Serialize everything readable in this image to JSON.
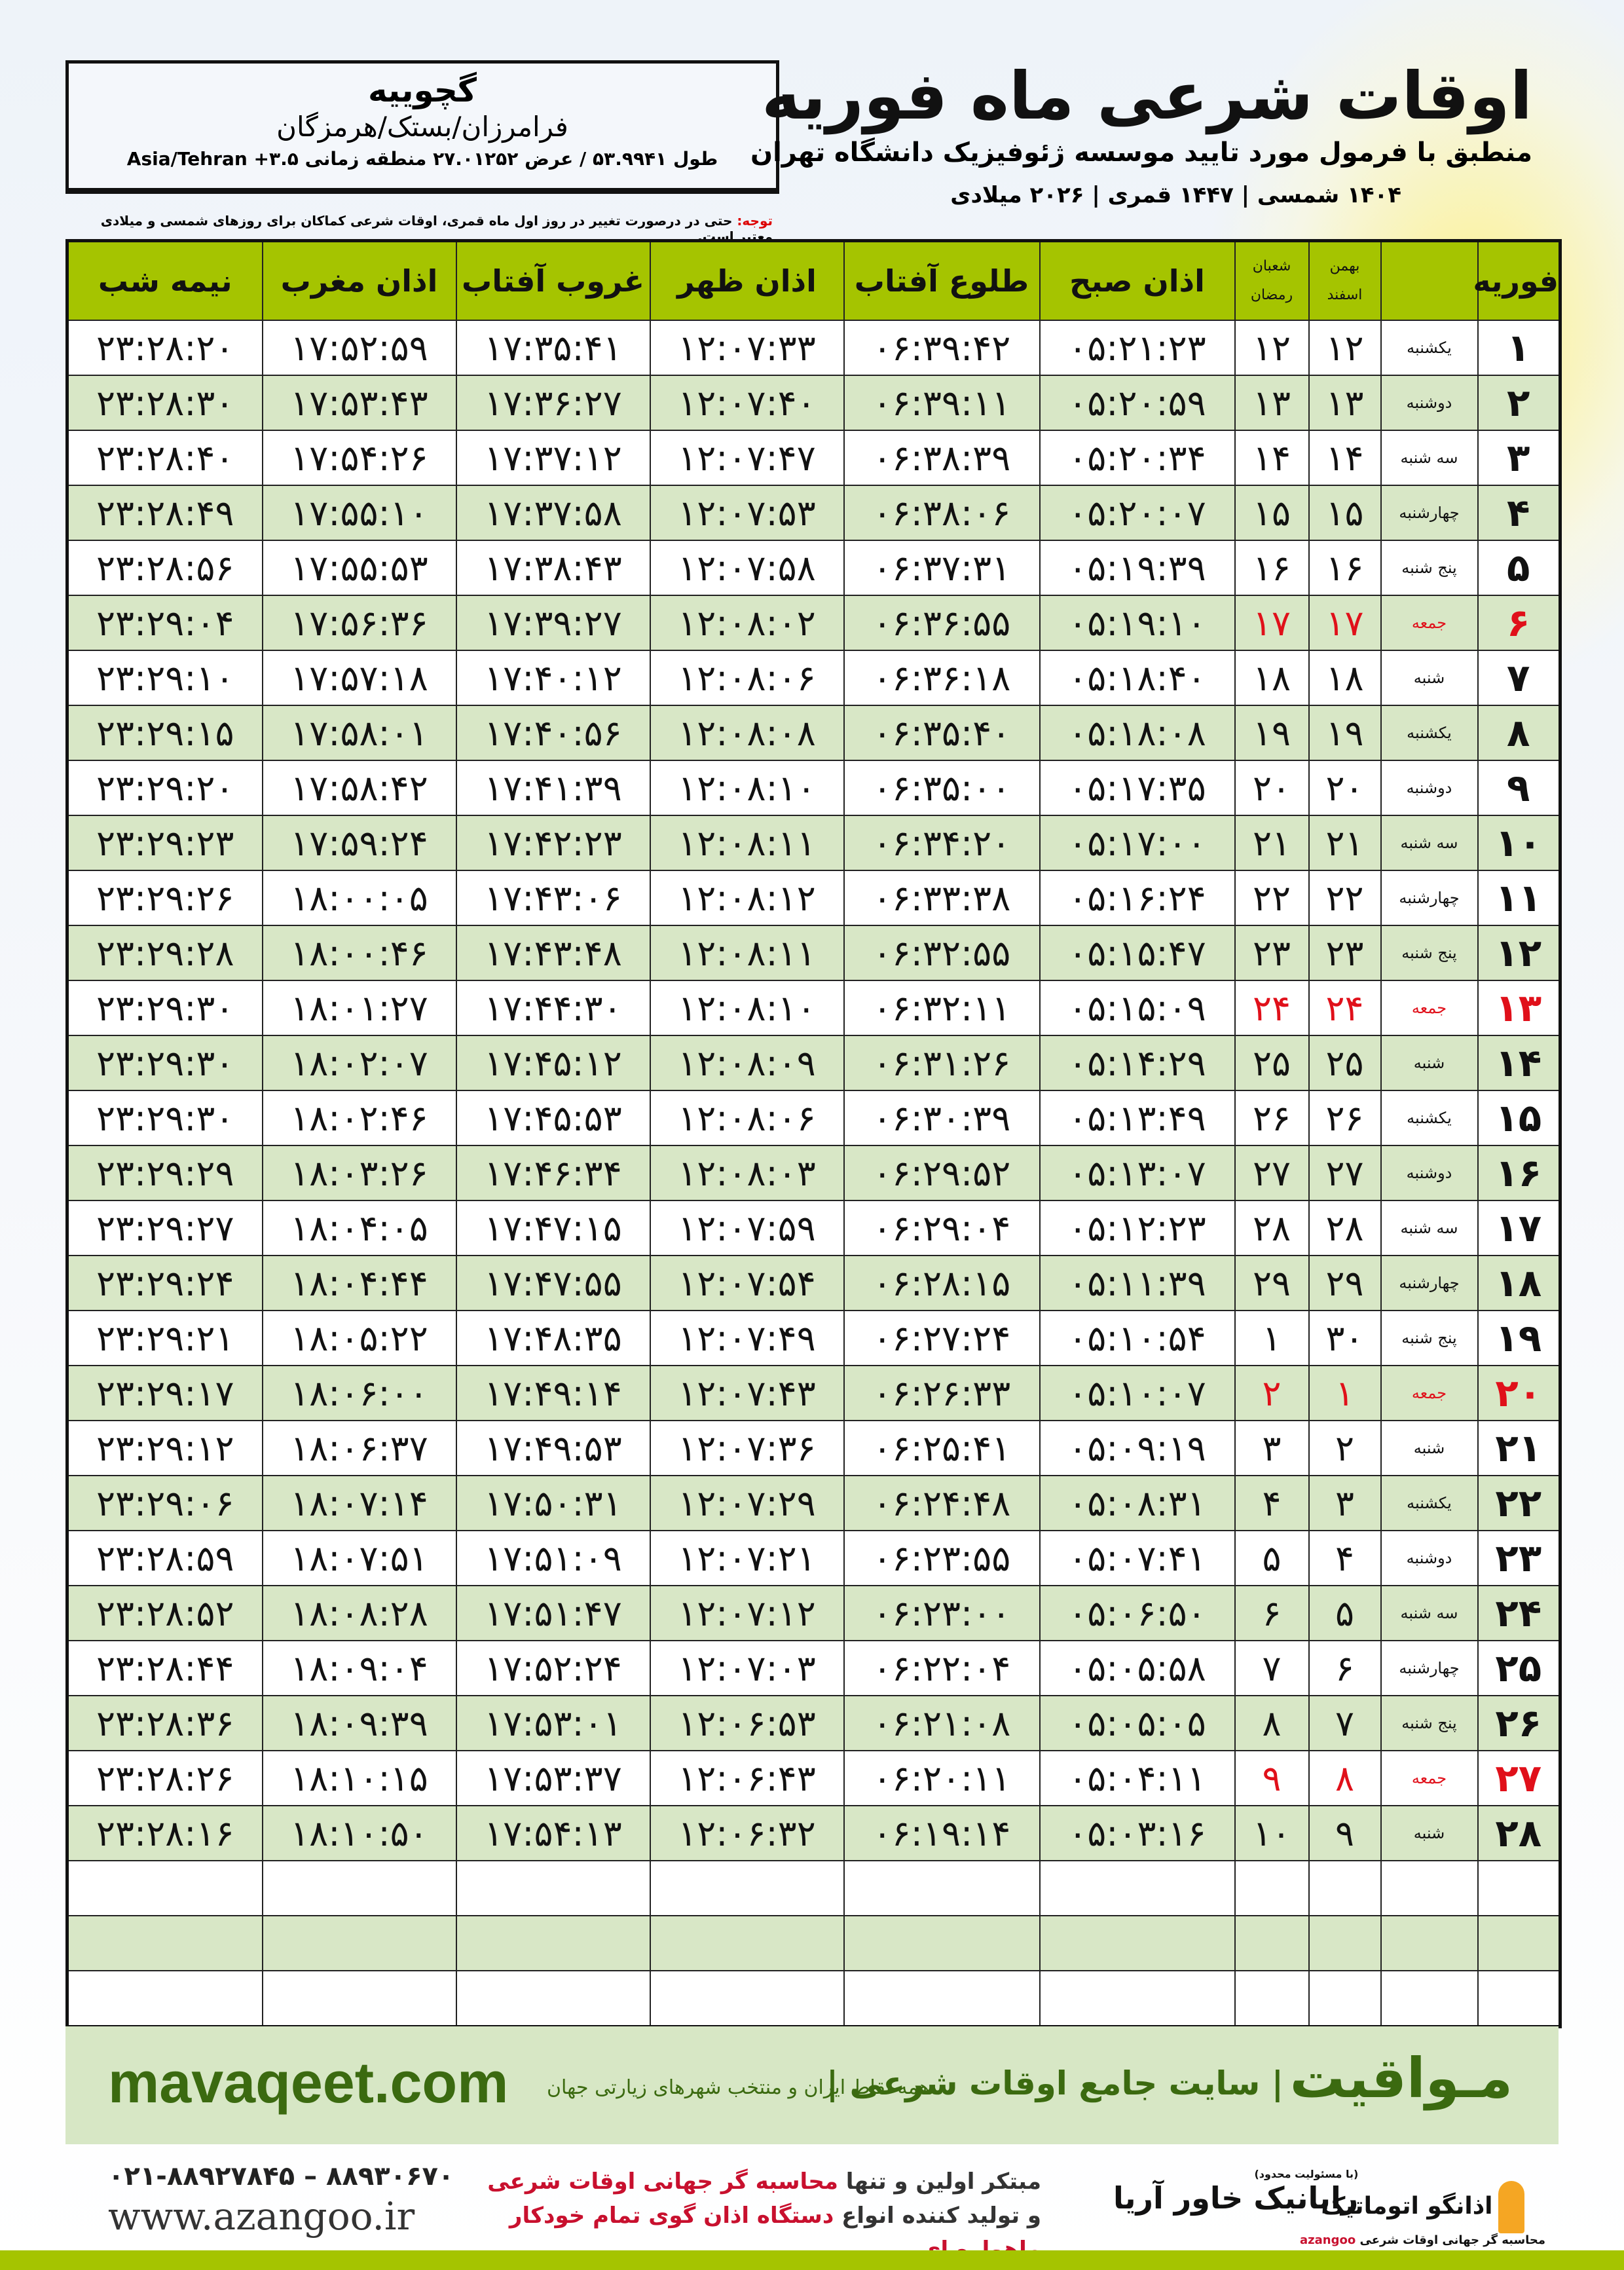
{
  "header": {
    "title": "اوقات شرعی ماه فوریه",
    "subtitle": "منطبق با فرمول مورد تایید موسسه ژئوفیزیک دانشگاه تهران",
    "years": "۱۴۰۴ شمسی | ۱۴۴۷ قمری | ۲۰۲۶ میلادی"
  },
  "location": {
    "city": "گچوییه",
    "region": "فرامرزان/بستک/هرمزگان",
    "coords": "طول ۵۳.۹۹۴۱ / عرض ۲۷.۰۱۲۵۲ منطقه زمانی ۳.۵+ Asia/Tehran"
  },
  "note": {
    "label": "توجه:",
    "text": " حتی در درصورت تغییر در روز اول ماه قمری، اوقات شرعی کماکان برای روزهای شمسی و میلادی معتبر است."
  },
  "colors": {
    "header_green": "#a5c400",
    "row_green": "#d8e7c6",
    "friday_red": "#e0101a",
    "brand_green": "#3b6a10"
  },
  "table": {
    "columns": {
      "day": "فوریه",
      "solar_top": "بهمن",
      "solar_bottom": "اسفند",
      "lunar_top": "شعبان",
      "lunar_bottom": "رمضان",
      "fajr": "اذان صبح",
      "sunrise": "طلوع آفتاب",
      "dhuhr": "اذان ظهر",
      "sunset": "غروب آفتاب",
      "maghrib": "اذان مغرب",
      "midnight": "نیمه شب"
    },
    "rows": [
      {
        "day": "۱",
        "weekday": "یکشنبه",
        "solar": "۱۲",
        "lunar": "۱۲",
        "fajr": "۰۵:۲۱:۲۳",
        "sunrise": "۰۶:۳۹:۴۲",
        "dhuhr": "۱۲:۰۷:۳۳",
        "sunset": "۱۷:۳۵:۴۱",
        "maghrib": "۱۷:۵۲:۵۹",
        "midnight": "۲۳:۲۸:۲۰"
      },
      {
        "day": "۲",
        "weekday": "دوشنبه",
        "solar": "۱۳",
        "lunar": "۱۳",
        "fajr": "۰۵:۲۰:۵۹",
        "sunrise": "۰۶:۳۹:۱۱",
        "dhuhr": "۱۲:۰۷:۴۰",
        "sunset": "۱۷:۳۶:۲۷",
        "maghrib": "۱۷:۵۳:۴۳",
        "midnight": "۲۳:۲۸:۳۰"
      },
      {
        "day": "۳",
        "weekday": "سه شنبه",
        "solar": "۱۴",
        "lunar": "۱۴",
        "fajr": "۰۵:۲۰:۳۴",
        "sunrise": "۰۶:۳۸:۳۹",
        "dhuhr": "۱۲:۰۷:۴۷",
        "sunset": "۱۷:۳۷:۱۲",
        "maghrib": "۱۷:۵۴:۲۶",
        "midnight": "۲۳:۲۸:۴۰"
      },
      {
        "day": "۴",
        "weekday": "چهارشنبه",
        "solar": "۱۵",
        "lunar": "۱۵",
        "fajr": "۰۵:۲۰:۰۷",
        "sunrise": "۰۶:۳۸:۰۶",
        "dhuhr": "۱۲:۰۷:۵۳",
        "sunset": "۱۷:۳۷:۵۸",
        "maghrib": "۱۷:۵۵:۱۰",
        "midnight": "۲۳:۲۸:۴۹"
      },
      {
        "day": "۵",
        "weekday": "پنج شنبه",
        "solar": "۱۶",
        "lunar": "۱۶",
        "fajr": "۰۵:۱۹:۳۹",
        "sunrise": "۰۶:۳۷:۳۱",
        "dhuhr": "۱۲:۰۷:۵۸",
        "sunset": "۱۷:۳۸:۴۳",
        "maghrib": "۱۷:۵۵:۵۳",
        "midnight": "۲۳:۲۸:۵۶"
      },
      {
        "day": "۶",
        "weekday": "جمعه",
        "solar": "۱۷",
        "lunar": "۱۷",
        "fajr": "۰۵:۱۹:۱۰",
        "sunrise": "۰۶:۳۶:۵۵",
        "dhuhr": "۱۲:۰۸:۰۲",
        "sunset": "۱۷:۳۹:۲۷",
        "maghrib": "۱۷:۵۶:۳۶",
        "midnight": "۲۳:۲۹:۰۴",
        "friday": true
      },
      {
        "day": "۷",
        "weekday": "شنبه",
        "solar": "۱۸",
        "lunar": "۱۸",
        "fajr": "۰۵:۱۸:۴۰",
        "sunrise": "۰۶:۳۶:۱۸",
        "dhuhr": "۱۲:۰۸:۰۶",
        "sunset": "۱۷:۴۰:۱۲",
        "maghrib": "۱۷:۵۷:۱۸",
        "midnight": "۲۳:۲۹:۱۰"
      },
      {
        "day": "۸",
        "weekday": "یکشنبه",
        "solar": "۱۹",
        "lunar": "۱۹",
        "fajr": "۰۵:۱۸:۰۸",
        "sunrise": "۰۶:۳۵:۴۰",
        "dhuhr": "۱۲:۰۸:۰۸",
        "sunset": "۱۷:۴۰:۵۶",
        "maghrib": "۱۷:۵۸:۰۱",
        "midnight": "۲۳:۲۹:۱۵"
      },
      {
        "day": "۹",
        "weekday": "دوشنبه",
        "solar": "۲۰",
        "lunar": "۲۰",
        "fajr": "۰۵:۱۷:۳۵",
        "sunrise": "۰۶:۳۵:۰۰",
        "dhuhr": "۱۲:۰۸:۱۰",
        "sunset": "۱۷:۴۱:۳۹",
        "maghrib": "۱۷:۵۸:۴۲",
        "midnight": "۲۳:۲۹:۲۰"
      },
      {
        "day": "۱۰",
        "weekday": "سه شنبه",
        "solar": "۲۱",
        "lunar": "۲۱",
        "fajr": "۰۵:۱۷:۰۰",
        "sunrise": "۰۶:۳۴:۲۰",
        "dhuhr": "۱۲:۰۸:۱۱",
        "sunset": "۱۷:۴۲:۲۳",
        "maghrib": "۱۷:۵۹:۲۴",
        "midnight": "۲۳:۲۹:۲۳"
      },
      {
        "day": "۱۱",
        "weekday": "چهارشنبه",
        "solar": "۲۲",
        "lunar": "۲۲",
        "fajr": "۰۵:۱۶:۲۴",
        "sunrise": "۰۶:۳۳:۳۸",
        "dhuhr": "۱۲:۰۸:۱۲",
        "sunset": "۱۷:۴۳:۰۶",
        "maghrib": "۱۸:۰۰:۰۵",
        "midnight": "۲۳:۲۹:۲۶"
      },
      {
        "day": "۱۲",
        "weekday": "پنج شنبه",
        "solar": "۲۳",
        "lunar": "۲۳",
        "fajr": "۰۵:۱۵:۴۷",
        "sunrise": "۰۶:۳۲:۵۵",
        "dhuhr": "۱۲:۰۸:۱۱",
        "sunset": "۱۷:۴۳:۴۸",
        "maghrib": "۱۸:۰۰:۴۶",
        "midnight": "۲۳:۲۹:۲۸"
      },
      {
        "day": "۱۳",
        "weekday": "جمعه",
        "solar": "۲۴",
        "lunar": "۲۴",
        "fajr": "۰۵:۱۵:۰۹",
        "sunrise": "۰۶:۳۲:۱۱",
        "dhuhr": "۱۲:۰۸:۱۰",
        "sunset": "۱۷:۴۴:۳۰",
        "maghrib": "۱۸:۰۱:۲۷",
        "midnight": "۲۳:۲۹:۳۰",
        "friday": true
      },
      {
        "day": "۱۴",
        "weekday": "شنبه",
        "solar": "۲۵",
        "lunar": "۲۵",
        "fajr": "۰۵:۱۴:۲۹",
        "sunrise": "۰۶:۳۱:۲۶",
        "dhuhr": "۱۲:۰۸:۰۹",
        "sunset": "۱۷:۴۵:۱۲",
        "maghrib": "۱۸:۰۲:۰۷",
        "midnight": "۲۳:۲۹:۳۰"
      },
      {
        "day": "۱۵",
        "weekday": "یکشنبه",
        "solar": "۲۶",
        "lunar": "۲۶",
        "fajr": "۰۵:۱۳:۴۹",
        "sunrise": "۰۶:۳۰:۳۹",
        "dhuhr": "۱۲:۰۸:۰۶",
        "sunset": "۱۷:۴۵:۵۳",
        "maghrib": "۱۸:۰۲:۴۶",
        "midnight": "۲۳:۲۹:۳۰"
      },
      {
        "day": "۱۶",
        "weekday": "دوشنبه",
        "solar": "۲۷",
        "lunar": "۲۷",
        "fajr": "۰۵:۱۳:۰۷",
        "sunrise": "۰۶:۲۹:۵۲",
        "dhuhr": "۱۲:۰۸:۰۳",
        "sunset": "۱۷:۴۶:۳۴",
        "maghrib": "۱۸:۰۳:۲۶",
        "midnight": "۲۳:۲۹:۲۹"
      },
      {
        "day": "۱۷",
        "weekday": "سه شنبه",
        "solar": "۲۸",
        "lunar": "۲۸",
        "fajr": "۰۵:۱۲:۲۳",
        "sunrise": "۰۶:۲۹:۰۴",
        "dhuhr": "۱۲:۰۷:۵۹",
        "sunset": "۱۷:۴۷:۱۵",
        "maghrib": "۱۸:۰۴:۰۵",
        "midnight": "۲۳:۲۹:۲۷"
      },
      {
        "day": "۱۸",
        "weekday": "چهارشنبه",
        "solar": "۲۹",
        "lunar": "۲۹",
        "fajr": "۰۵:۱۱:۳۹",
        "sunrise": "۰۶:۲۸:۱۵",
        "dhuhr": "۱۲:۰۷:۵۴",
        "sunset": "۱۷:۴۷:۵۵",
        "maghrib": "۱۸:۰۴:۴۴",
        "midnight": "۲۳:۲۹:۲۴"
      },
      {
        "day": "۱۹",
        "weekday": "پنج شنبه",
        "solar": "۳۰",
        "lunar": "۱",
        "fajr": "۰۵:۱۰:۵۴",
        "sunrise": "۰۶:۲۷:۲۴",
        "dhuhr": "۱۲:۰۷:۴۹",
        "sunset": "۱۷:۴۸:۳۵",
        "maghrib": "۱۸:۰۵:۲۲",
        "midnight": "۲۳:۲۹:۲۱"
      },
      {
        "day": "۲۰",
        "weekday": "جمعه",
        "solar": "۱",
        "lunar": "۲",
        "fajr": "۰۵:۱۰:۰۷",
        "sunrise": "۰۶:۲۶:۳۳",
        "dhuhr": "۱۲:۰۷:۴۳",
        "sunset": "۱۷:۴۹:۱۴",
        "maghrib": "۱۸:۰۶:۰۰",
        "midnight": "۲۳:۲۹:۱۷",
        "friday": true
      },
      {
        "day": "۲۱",
        "weekday": "شنبه",
        "solar": "۲",
        "lunar": "۳",
        "fajr": "۰۵:۰۹:۱۹",
        "sunrise": "۰۶:۲۵:۴۱",
        "dhuhr": "۱۲:۰۷:۳۶",
        "sunset": "۱۷:۴۹:۵۳",
        "maghrib": "۱۸:۰۶:۳۷",
        "midnight": "۲۳:۲۹:۱۲"
      },
      {
        "day": "۲۲",
        "weekday": "یکشنبه",
        "solar": "۳",
        "lunar": "۴",
        "fajr": "۰۵:۰۸:۳۱",
        "sunrise": "۰۶:۲۴:۴۸",
        "dhuhr": "۱۲:۰۷:۲۹",
        "sunset": "۱۷:۵۰:۳۱",
        "maghrib": "۱۸:۰۷:۱۴",
        "midnight": "۲۳:۲۹:۰۶"
      },
      {
        "day": "۲۳",
        "weekday": "دوشنبه",
        "solar": "۴",
        "lunar": "۵",
        "fajr": "۰۵:۰۷:۴۱",
        "sunrise": "۰۶:۲۳:۵۵",
        "dhuhr": "۱۲:۰۷:۲۱",
        "sunset": "۱۷:۵۱:۰۹",
        "maghrib": "۱۸:۰۷:۵۱",
        "midnight": "۲۳:۲۸:۵۹"
      },
      {
        "day": "۲۴",
        "weekday": "سه شنبه",
        "solar": "۵",
        "lunar": "۶",
        "fajr": "۰۵:۰۶:۵۰",
        "sunrise": "۰۶:۲۳:۰۰",
        "dhuhr": "۱۲:۰۷:۱۲",
        "sunset": "۱۷:۵۱:۴۷",
        "maghrib": "۱۸:۰۸:۲۸",
        "midnight": "۲۳:۲۸:۵۲"
      },
      {
        "day": "۲۵",
        "weekday": "چهارشنبه",
        "solar": "۶",
        "lunar": "۷",
        "fajr": "۰۵:۰۵:۵۸",
        "sunrise": "۰۶:۲۲:۰۴",
        "dhuhr": "۱۲:۰۷:۰۳",
        "sunset": "۱۷:۵۲:۲۴",
        "maghrib": "۱۸:۰۹:۰۴",
        "midnight": "۲۳:۲۸:۴۴"
      },
      {
        "day": "۲۶",
        "weekday": "پنج شنبه",
        "solar": "۷",
        "lunar": "۸",
        "fajr": "۰۵:۰۵:۰۵",
        "sunrise": "۰۶:۲۱:۰۸",
        "dhuhr": "۱۲:۰۶:۵۳",
        "sunset": "۱۷:۵۳:۰۱",
        "maghrib": "۱۸:۰۹:۳۹",
        "midnight": "۲۳:۲۸:۳۶"
      },
      {
        "day": "۲۷",
        "weekday": "جمعه",
        "solar": "۸",
        "lunar": "۹",
        "fajr": "۰۵:۰۴:۱۱",
        "sunrise": "۰۶:۲۰:۱۱",
        "dhuhr": "۱۲:۰۶:۴۳",
        "sunset": "۱۷:۵۳:۳۷",
        "maghrib": "۱۸:۱۰:۱۵",
        "midnight": "۲۳:۲۸:۲۶",
        "friday": true
      },
      {
        "day": "۲۸",
        "weekday": "شنبه",
        "solar": "۹",
        "lunar": "۱۰",
        "fajr": "۰۵:۰۳:۱۶",
        "sunrise": "۰۶:۱۹:۱۴",
        "dhuhr": "۱۲:۰۶:۳۲",
        "sunset": "۱۷:۵۴:۱۳",
        "maghrib": "۱۸:۱۰:۵۰",
        "midnight": "۲۳:۲۸:۱۶"
      }
    ]
  },
  "footer": {
    "brand": "مـواقیت",
    "tagline": "| سایت جامع اوقات شرعی |",
    "tagline2": "همه نقاط ایران و منتخب شهرهای زیارتی جهان",
    "site": "mavaqeet.com",
    "phone": "۰۲۱-۸۸۹۲۷۸۴۵ – ۸۸۹۳۰۶۷۰",
    "www": "www.azangoo.ir",
    "promo1a": "مبتکر اولین و تنها ",
    "promo1b": "محاسبه گر جهانی اوقات شرعی",
    "promo2a": "و تولید کننده انواع ",
    "promo2b": "دستگاه اذان گوی تمام خودکار ماهواره ای",
    "logo1_small": "(با مسئولیت محدود)",
    "logo1": "رایانیک خاور آریا",
    "logo2": "اذانگو اتوماتیک",
    "logo2_small": "محاسبه گر جهانی اوقات شرعی",
    "logo2_latin": "azangoo"
  }
}
